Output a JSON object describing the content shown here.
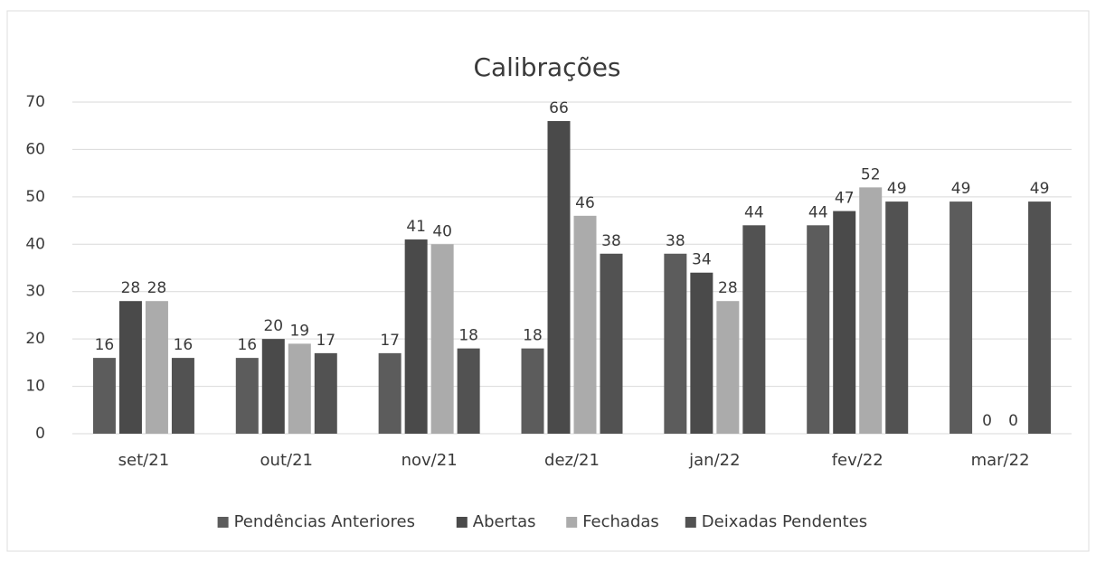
{
  "chart_data": {
    "type": "bar",
    "title": "Calibrações",
    "categories": [
      "set/21",
      "out/21",
      "nov/21",
      "dez/21",
      "jan/22",
      "fev/22",
      "mar/22"
    ],
    "series": [
      {
        "name": "Pendências Anteriores",
        "color": "#5c5c5c",
        "values": [
          16,
          16,
          17,
          18,
          38,
          44,
          49
        ]
      },
      {
        "name": "Abertas",
        "color": "#4a4a4a",
        "values": [
          28,
          20,
          41,
          66,
          34,
          47,
          0
        ]
      },
      {
        "name": "Fechadas",
        "color": "#ababab",
        "values": [
          28,
          19,
          40,
          46,
          28,
          52,
          0
        ]
      },
      {
        "name": "Deixadas Pendentes",
        "color": "#525252",
        "values": [
          16,
          17,
          18,
          38,
          44,
          49,
          49
        ]
      }
    ],
    "ylim": [
      0,
      70
    ],
    "yticks": [
      0,
      10,
      20,
      30,
      40,
      50,
      60,
      70
    ],
    "grid": true,
    "legend": "bottom"
  }
}
